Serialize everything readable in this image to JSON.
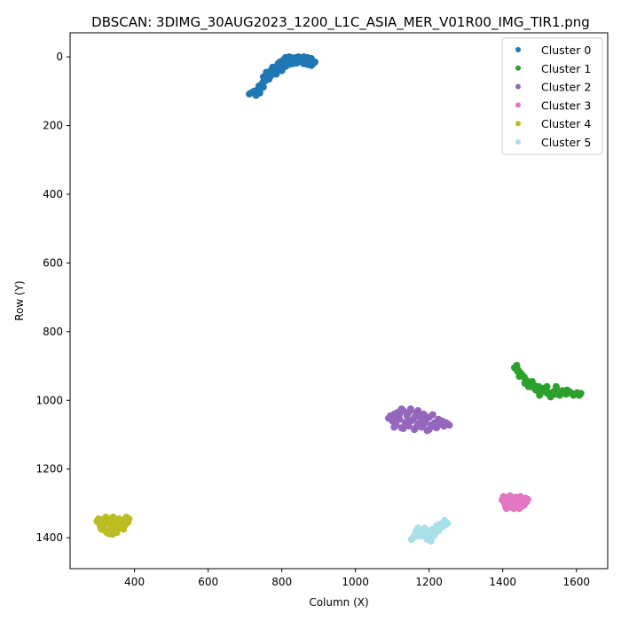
{
  "chart_data": {
    "type": "scatter",
    "title": "DBSCAN: 3DIMG_30AUG2023_1200_L1C_ASIA_MER_V01R00_IMG_TIR1.png",
    "xlabel": "Column (X)",
    "ylabel": "Row (Y)",
    "xlim": [
      225,
      1685
    ],
    "ylim": [
      1490,
      -70
    ],
    "y_inverted": true,
    "x_ticks": [
      400,
      600,
      800,
      1000,
      1200,
      1400,
      1600
    ],
    "y_ticks": [
      0,
      200,
      400,
      600,
      800,
      1000,
      1200,
      1400
    ],
    "grid": false,
    "legend_position": "top-right",
    "series": [
      {
        "name": "Cluster 0",
        "color": "#1f77b4",
        "points": [
          [
            712,
            108
          ],
          [
            718,
            104
          ],
          [
            725,
            100
          ],
          [
            730,
            112
          ],
          [
            735,
            95
          ],
          [
            740,
            105
          ],
          [
            745,
            90
          ],
          [
            738,
            85
          ],
          [
            750,
            88
          ],
          [
            748,
            75
          ],
          [
            755,
            70
          ],
          [
            760,
            60
          ],
          [
            765,
            65
          ],
          [
            770,
            55
          ],
          [
            758,
            45
          ],
          [
            770,
            40
          ],
          [
            775,
            50
          ],
          [
            780,
            45
          ],
          [
            785,
            35
          ],
          [
            790,
            40
          ],
          [
            795,
            30
          ],
          [
            800,
            25
          ],
          [
            805,
            20
          ],
          [
            810,
            18
          ],
          [
            815,
            15
          ],
          [
            820,
            10
          ],
          [
            825,
            8
          ],
          [
            830,
            5
          ],
          [
            835,
            3
          ],
          [
            840,
            2
          ],
          [
            845,
            0
          ],
          [
            850,
            2
          ],
          [
            855,
            5
          ],
          [
            860,
            8
          ],
          [
            865,
            10
          ],
          [
            870,
            12
          ],
          [
            875,
            15
          ],
          [
            880,
            18
          ],
          [
            885,
            20
          ],
          [
            890,
            15
          ],
          [
            880,
            25
          ],
          [
            870,
            22
          ],
          [
            860,
            20
          ],
          [
            850,
            15
          ],
          [
            840,
            18
          ],
          [
            830,
            20
          ],
          [
            820,
            22
          ],
          [
            810,
            28
          ],
          [
            800,
            32
          ],
          [
            790,
            38
          ],
          [
            780,
            42
          ],
          [
            770,
            48
          ],
          [
            760,
            52
          ],
          [
            750,
            58
          ],
          [
            795,
            15
          ],
          [
            805,
            8
          ],
          [
            815,
            5
          ],
          [
            825,
            2
          ],
          [
            835,
            8
          ],
          [
            845,
            10
          ],
          [
            800,
            40
          ],
          [
            785,
            50
          ],
          [
            775,
            30
          ],
          [
            790,
            20
          ],
          [
            810,
            10
          ],
          [
            880,
            5
          ],
          [
            870,
            2
          ],
          [
            860,
            0
          ],
          [
            820,
            0
          ],
          [
            810,
            2
          ]
        ]
      },
      {
        "name": "Cluster 1",
        "color": "#2ca02c",
        "points": [
          [
            1432,
            905
          ],
          [
            1438,
            898
          ],
          [
            1442,
            912
          ],
          [
            1448,
            920
          ],
          [
            1445,
            930
          ],
          [
            1452,
            925
          ],
          [
            1458,
            932
          ],
          [
            1462,
            940
          ],
          [
            1468,
            945
          ],
          [
            1472,
            950
          ],
          [
            1478,
            955
          ],
          [
            1482,
            962
          ],
          [
            1488,
            958
          ],
          [
            1492,
            965
          ],
          [
            1498,
            960
          ],
          [
            1502,
            970
          ],
          [
            1508,
            968
          ],
          [
            1512,
            975
          ],
          [
            1518,
            972
          ],
          [
            1522,
            980
          ],
          [
            1528,
            985
          ],
          [
            1532,
            978
          ],
          [
            1538,
            975
          ],
          [
            1542,
            982
          ],
          [
            1548,
            970
          ],
          [
            1552,
            978
          ],
          [
            1558,
            980
          ],
          [
            1562,
            972
          ],
          [
            1568,
            975
          ],
          [
            1572,
            982
          ],
          [
            1578,
            978
          ],
          [
            1582,
            975
          ],
          [
            1588,
            980
          ],
          [
            1592,
            985
          ],
          [
            1598,
            982
          ],
          [
            1602,
            978
          ],
          [
            1608,
            985
          ],
          [
            1612,
            980
          ],
          [
            1470,
            960
          ],
          [
            1490,
            970
          ],
          [
            1510,
            965
          ],
          [
            1530,
            990
          ],
          [
            1545,
            960
          ],
          [
            1555,
            985
          ],
          [
            1575,
            970
          ],
          [
            1520,
            960
          ],
          [
            1500,
            985
          ],
          [
            1480,
            945
          ],
          [
            1460,
            950
          ],
          [
            1440,
            915
          ]
        ]
      },
      {
        "name": "Cluster 2",
        "color": "#9467bd",
        "points": [
          [
            1090,
            1052
          ],
          [
            1095,
            1045
          ],
          [
            1100,
            1060
          ],
          [
            1105,
            1040
          ],
          [
            1110,
            1070
          ],
          [
            1115,
            1035
          ],
          [
            1120,
            1055
          ],
          [
            1125,
            1080
          ],
          [
            1130,
            1030
          ],
          [
            1135,
            1065
          ],
          [
            1140,
            1045
          ],
          [
            1145,
            1075
          ],
          [
            1150,
            1025
          ],
          [
            1155,
            1058
          ],
          [
            1160,
            1085
          ],
          [
            1165,
            1035
          ],
          [
            1170,
            1068
          ],
          [
            1175,
            1048
          ],
          [
            1180,
            1078
          ],
          [
            1185,
            1040
          ],
          [
            1190,
            1062
          ],
          [
            1195,
            1088
          ],
          [
            1200,
            1050
          ],
          [
            1205,
            1072
          ],
          [
            1210,
            1042
          ],
          [
            1215,
            1065
          ],
          [
            1220,
            1080
          ],
          [
            1225,
            1055
          ],
          [
            1230,
            1070
          ],
          [
            1235,
            1060
          ],
          [
            1240,
            1075
          ],
          [
            1245,
            1065
          ],
          [
            1250,
            1068
          ],
          [
            1255,
            1072
          ],
          [
            1110,
            1050
          ],
          [
            1130,
            1082
          ],
          [
            1150,
            1060
          ],
          [
            1170,
            1030
          ],
          [
            1190,
            1045
          ],
          [
            1210,
            1075
          ],
          [
            1120,
            1040
          ],
          [
            1140,
            1062
          ],
          [
            1160,
            1050
          ],
          [
            1180,
            1058
          ],
          [
            1200,
            1085
          ],
          [
            1105,
            1078
          ],
          [
            1125,
            1025
          ],
          [
            1145,
            1035
          ],
          [
            1165,
            1078
          ],
          [
            1185,
            1070
          ]
        ]
      },
      {
        "name": "Cluster 3",
        "color": "#e377c2",
        "points": [
          [
            1398,
            1290
          ],
          [
            1402,
            1280
          ],
          [
            1405,
            1300
          ],
          [
            1408,
            1310
          ],
          [
            1412,
            1285
          ],
          [
            1415,
            1295
          ],
          [
            1418,
            1305
          ],
          [
            1420,
            1278
          ],
          [
            1425,
            1312
          ],
          [
            1428,
            1290
          ],
          [
            1432,
            1300
          ],
          [
            1435,
            1282
          ],
          [
            1438,
            1308
          ],
          [
            1442,
            1295
          ],
          [
            1445,
            1315
          ],
          [
            1448,
            1280
          ],
          [
            1452,
            1300
          ],
          [
            1455,
            1290
          ],
          [
            1458,
            1305
          ],
          [
            1462,
            1285
          ],
          [
            1465,
            1295
          ],
          [
            1468,
            1288
          ],
          [
            1410,
            1315
          ],
          [
            1422,
            1298
          ],
          [
            1440,
            1285
          ],
          [
            1450,
            1310
          ],
          [
            1460,
            1298
          ],
          [
            1430,
            1315
          ],
          [
            1415,
            1282
          ],
          [
            1445,
            1300
          ]
        ]
      },
      {
        "name": "Cluster 4",
        "color": "#bcbd22",
        "points": [
          [
            298,
            1352
          ],
          [
            302,
            1345
          ],
          [
            305,
            1360
          ],
          [
            308,
            1370
          ],
          [
            312,
            1348
          ],
          [
            315,
            1365
          ],
          [
            318,
            1378
          ],
          [
            320,
            1355
          ],
          [
            325,
            1385
          ],
          [
            328,
            1345
          ],
          [
            332,
            1362
          ],
          [
            335,
            1375
          ],
          [
            338,
            1350
          ],
          [
            340,
            1390
          ],
          [
            342,
            1340
          ],
          [
            345,
            1368
          ],
          [
            348,
            1380
          ],
          [
            350,
            1355
          ],
          [
            355,
            1372
          ],
          [
            358,
            1345
          ],
          [
            360,
            1365
          ],
          [
            365,
            1358
          ],
          [
            368,
            1370
          ],
          [
            372,
            1348
          ],
          [
            375,
            1362
          ],
          [
            378,
            1340
          ],
          [
            382,
            1355
          ],
          [
            385,
            1345
          ],
          [
            310,
            1375
          ],
          [
            330,
            1388
          ],
          [
            352,
            1385
          ],
          [
            362,
            1350
          ],
          [
            322,
            1340
          ],
          [
            344,
            1358
          ],
          [
            370,
            1375
          ]
        ]
      },
      {
        "name": "Cluster 5",
        "color": "#aadfea",
        "points": [
          [
            1152,
            1405
          ],
          [
            1158,
            1398
          ],
          [
            1162,
            1390
          ],
          [
            1165,
            1380
          ],
          [
            1170,
            1372
          ],
          [
            1175,
            1385
          ],
          [
            1180,
            1395
          ],
          [
            1185,
            1378
          ],
          [
            1190,
            1390
          ],
          [
            1195,
            1405
          ],
          [
            1200,
            1400
          ],
          [
            1205,
            1385
          ],
          [
            1210,
            1375
          ],
          [
            1215,
            1390
          ],
          [
            1220,
            1365
          ],
          [
            1225,
            1380
          ],
          [
            1230,
            1360
          ],
          [
            1235,
            1370
          ],
          [
            1240,
            1355
          ],
          [
            1245,
            1362
          ],
          [
            1250,
            1358
          ],
          [
            1212,
            1395
          ],
          [
            1198,
            1380
          ],
          [
            1228,
            1370
          ],
          [
            1205,
            1410
          ],
          [
            1188,
            1372
          ],
          [
            1238,
            1365
          ],
          [
            1218,
            1380
          ],
          [
            1168,
            1395
          ],
          [
            1242,
            1350
          ]
        ]
      }
    ]
  }
}
